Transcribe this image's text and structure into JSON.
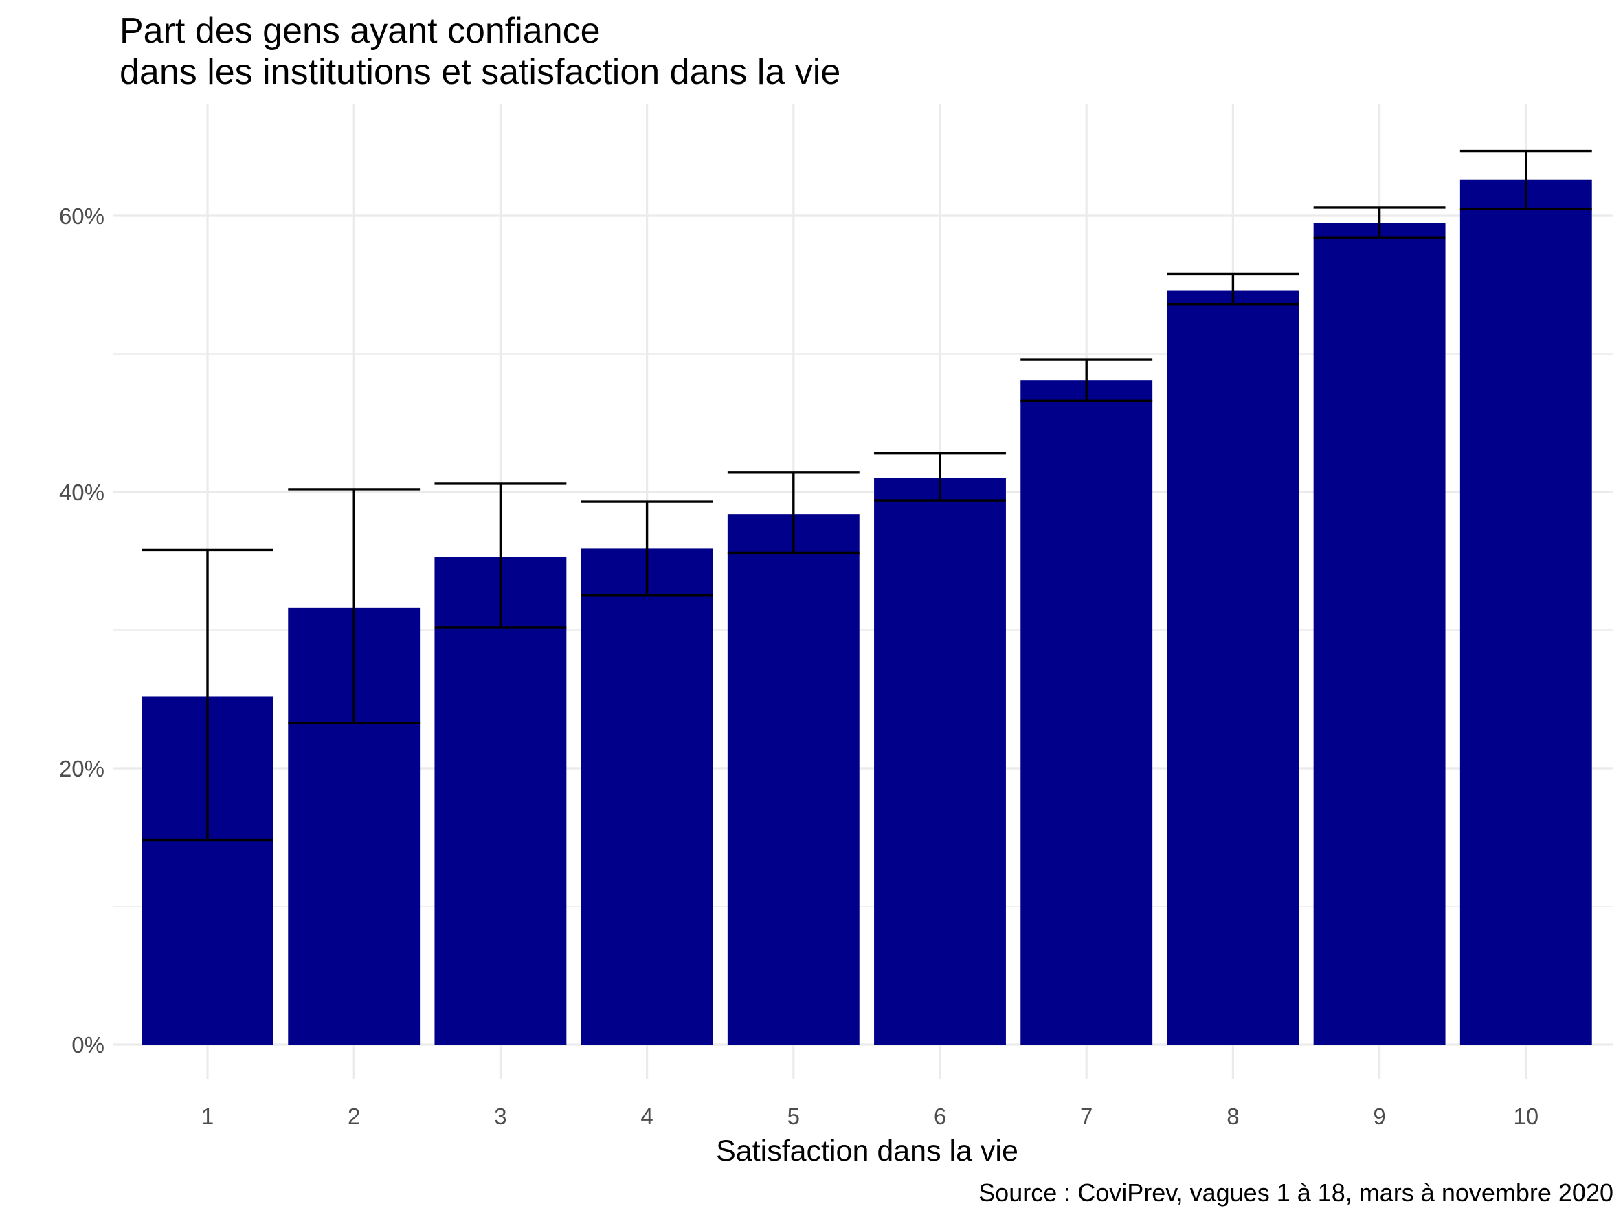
{
  "chart_data": {
    "type": "bar",
    "title": "Part des gens ayant confiance",
    "subtitle": "dans les institutions et satisfaction dans la vie",
    "xlabel": "Satisfaction dans la vie",
    "ylabel": "",
    "caption": "Source : CoviPrev, vagues 1 à 18, mars à novembre 2020",
    "categories": [
      "1",
      "2",
      "3",
      "4",
      "5",
      "6",
      "7",
      "8",
      "9",
      "10"
    ],
    "values": [
      25.2,
      31.6,
      35.3,
      35.9,
      38.4,
      41.0,
      48.1,
      54.6,
      59.5,
      62.6
    ],
    "error_low": [
      14.8,
      23.3,
      30.2,
      32.5,
      35.6,
      39.4,
      46.6,
      53.6,
      58.4,
      60.5
    ],
    "error_high": [
      35.8,
      40.2,
      40.6,
      39.3,
      41.4,
      42.8,
      49.6,
      55.8,
      60.6,
      64.7
    ],
    "ylim": [
      0,
      67.5
    ],
    "yticks": [
      0,
      20,
      40,
      60
    ],
    "ytick_labels": [
      "0%",
      "20%",
      "40%",
      "60%"
    ],
    "grid": true,
    "legend": "none",
    "colors": {
      "bar": "#00008b",
      "errorbar": "#000000",
      "grid": "#ebebeb"
    }
  }
}
